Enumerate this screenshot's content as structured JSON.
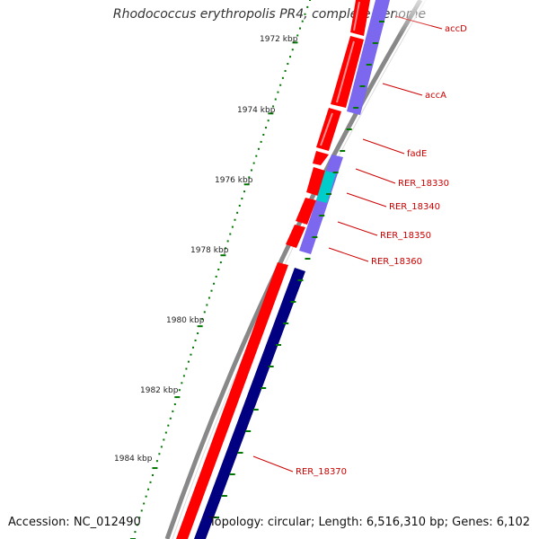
{
  "title": "Rhodococcus erythropolis PR4, complete genome",
  "accession_text": "Accession: NC_012490",
  "summary_text": "Topology: circular; Length: 6,516,310 bp; Genes: 6,102",
  "colors": {
    "backbone": "#888888",
    "forward_cds": "#ff0000",
    "reverse_cds": "#7b68ee",
    "reverse_highlight": "#00cccc",
    "dark_strand": "#000080",
    "tick": "#007700",
    "label": "#cc0000"
  },
  "ruler": {
    "labels": [
      "1972 kbp",
      "1974 kbp",
      "1976 kbp",
      "1978 kbp",
      "1980 kbp",
      "1982 kbp",
      "1984 kbp"
    ]
  },
  "gene_labels": [
    "accD",
    "accA",
    "fadE",
    "RER_18330",
    "RER_18340",
    "RER_18350",
    "RER_18360",
    "RER_18370"
  ]
}
